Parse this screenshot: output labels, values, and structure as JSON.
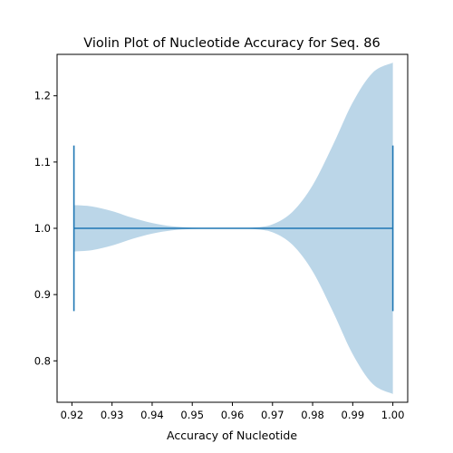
{
  "chart_data": {
    "type": "violin",
    "orientation": "horizontal",
    "title": "Violin Plot of Nucleotide Accuracy for Seq. 86",
    "xlabel": "Accuracy of Nucleotide",
    "ylabel": "",
    "xlim": [
      0.9163,
      1.0037
    ],
    "ylim": [
      0.7375,
      1.2625
    ],
    "x_ticks": [
      0.92,
      0.93,
      0.94,
      0.95,
      0.96,
      0.97,
      0.98,
      0.99,
      1.0
    ],
    "x_tick_labels": [
      "0.92",
      "0.93",
      "0.94",
      "0.95",
      "0.96",
      "0.97",
      "0.98",
      "0.99",
      "1.00"
    ],
    "y_ticks": [
      0.8,
      0.9,
      1.0,
      1.1,
      1.2
    ],
    "y_tick_labels": [
      "0.8",
      "0.9",
      "1.0",
      "1.1",
      "1.2"
    ],
    "position": 1.0,
    "min": 0.9205,
    "max": 1.0,
    "cap_halfwidth": 0.125,
    "density_profile": {
      "x": [
        0.9205,
        0.925,
        0.93,
        0.935,
        0.94,
        0.945,
        0.95,
        0.955,
        0.96,
        0.965,
        0.97,
        0.975,
        0.98,
        0.985,
        0.99,
        0.995,
        1.0
      ],
      "halfwidth": [
        0.035,
        0.033,
        0.026,
        0.016,
        0.008,
        0.003,
        0.001,
        0.0005,
        0.0005,
        0.001,
        0.006,
        0.025,
        0.065,
        0.125,
        0.19,
        0.235,
        0.25
      ]
    },
    "colors": {
      "body": "#1f77b4",
      "body_alpha": 0.3,
      "lines": "#1f77b4"
    },
    "grid": false
  }
}
